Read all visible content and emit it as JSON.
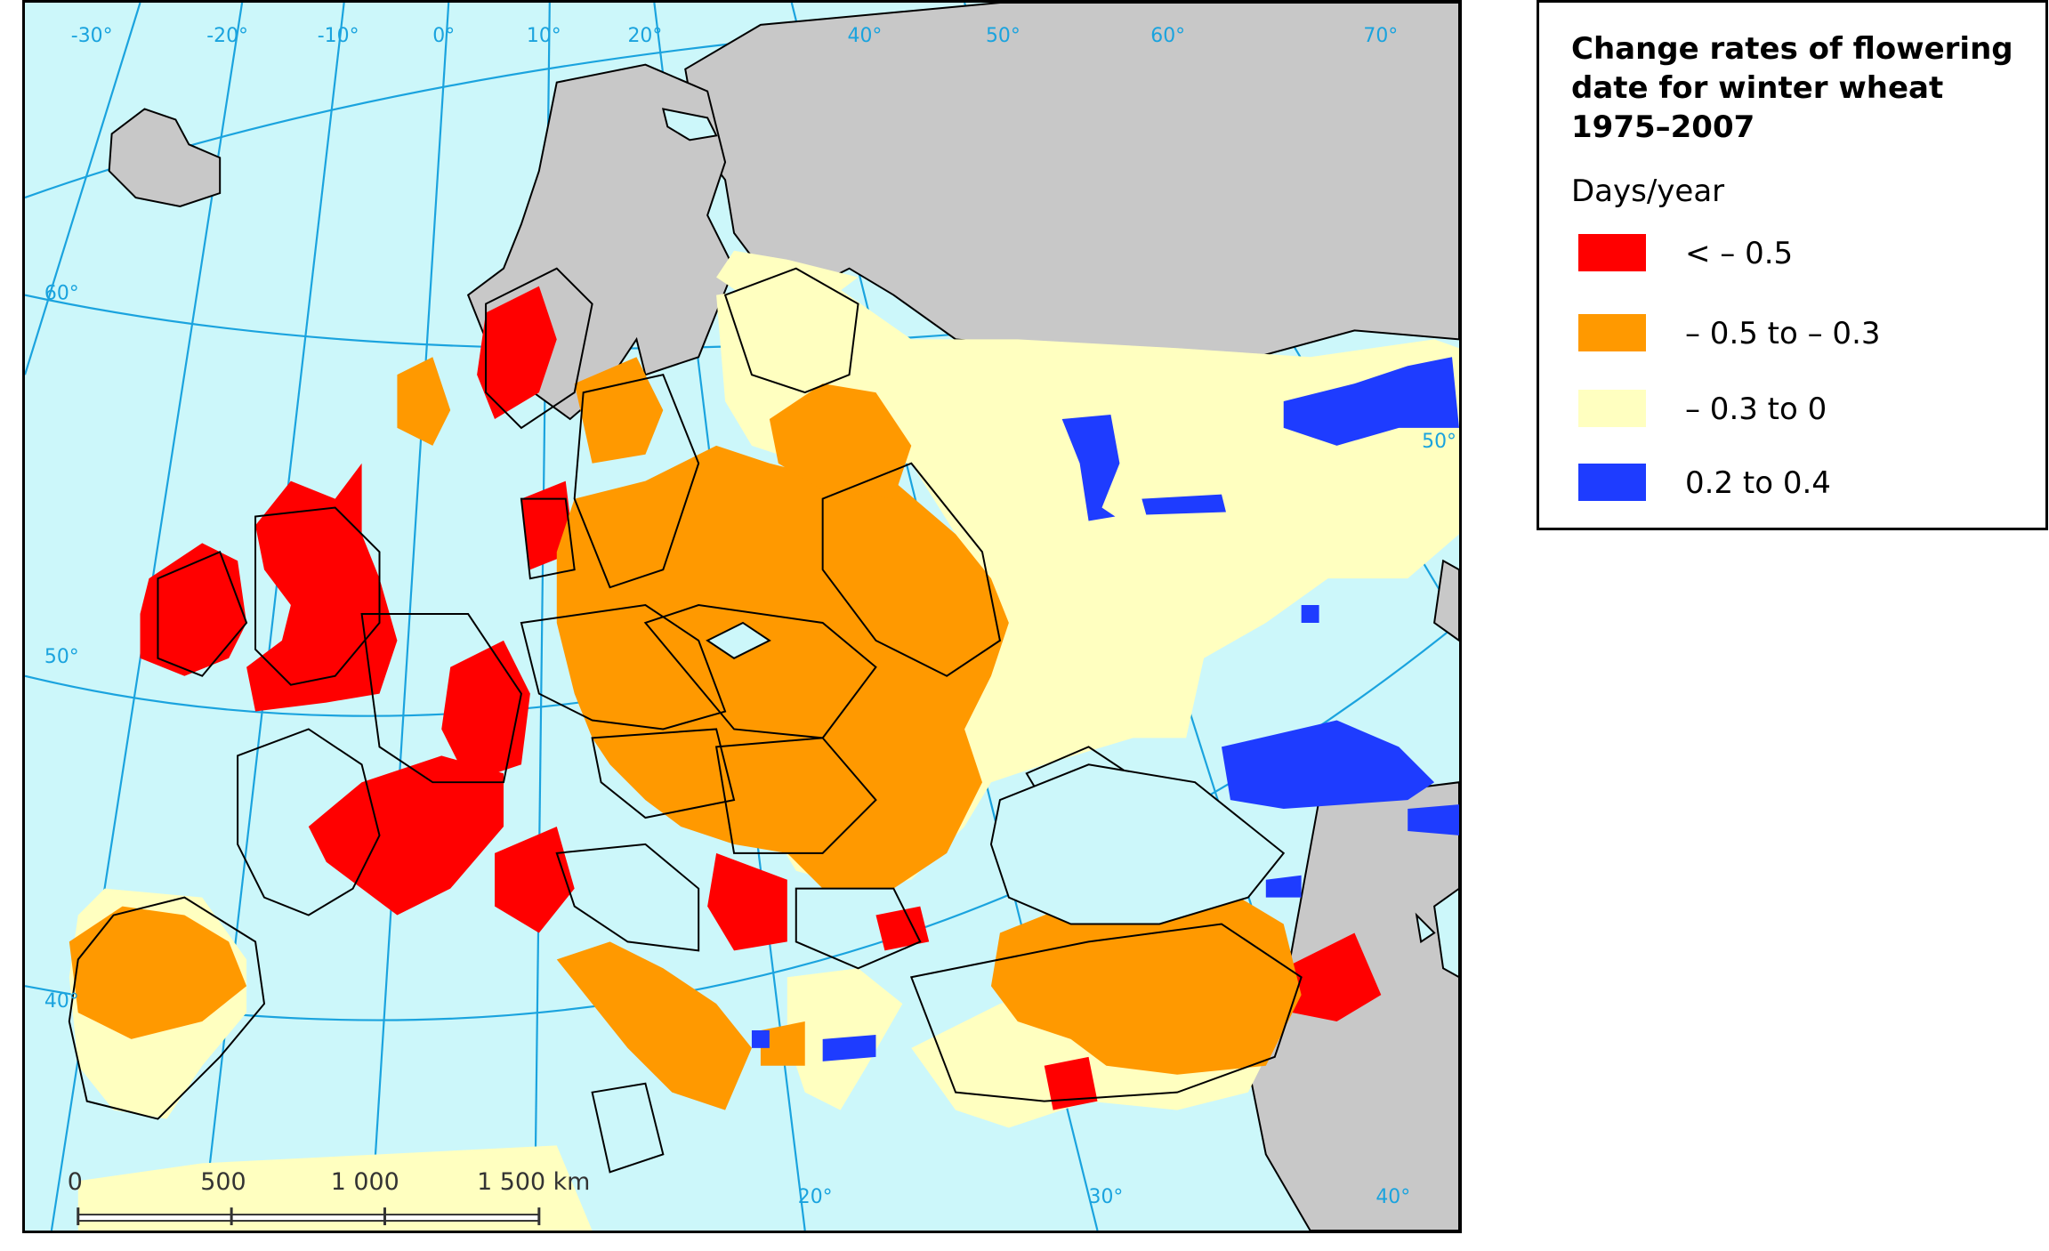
{
  "legend": {
    "title": "Change rates of flowering date for winter wheat 1975–2007",
    "unit": "Days/year",
    "classes": [
      {
        "label": "< – 0.5",
        "color": "#ff0000"
      },
      {
        "label": "– 0.5 to – 0.3",
        "color": "#ff9900"
      },
      {
        "label": "– 0.3 to 0",
        "color": "#ffffc0"
      },
      {
        "label": "0.2 to 0.4",
        "color": "#1e3cff"
      }
    ]
  },
  "graticule_labels": {
    "lon_top": [
      "-30°",
      "-20°",
      "-10°",
      "0°",
      "10°",
      "20°",
      "40°",
      "50°",
      "60°",
      "70°"
    ],
    "lat_left": [
      "60°",
      "50°",
      "40°"
    ],
    "lat_right": [
      "50°"
    ],
    "lon_bottom": [
      "20°",
      "30°",
      "40°"
    ]
  },
  "scale_bar": {
    "ticks": [
      "0",
      "500",
      "1 000",
      "1 500 km"
    ]
  },
  "colors": {
    "sea": "#ccf7fa",
    "no_data": "#c8c8c8",
    "graticule": "#1aa3de"
  }
}
